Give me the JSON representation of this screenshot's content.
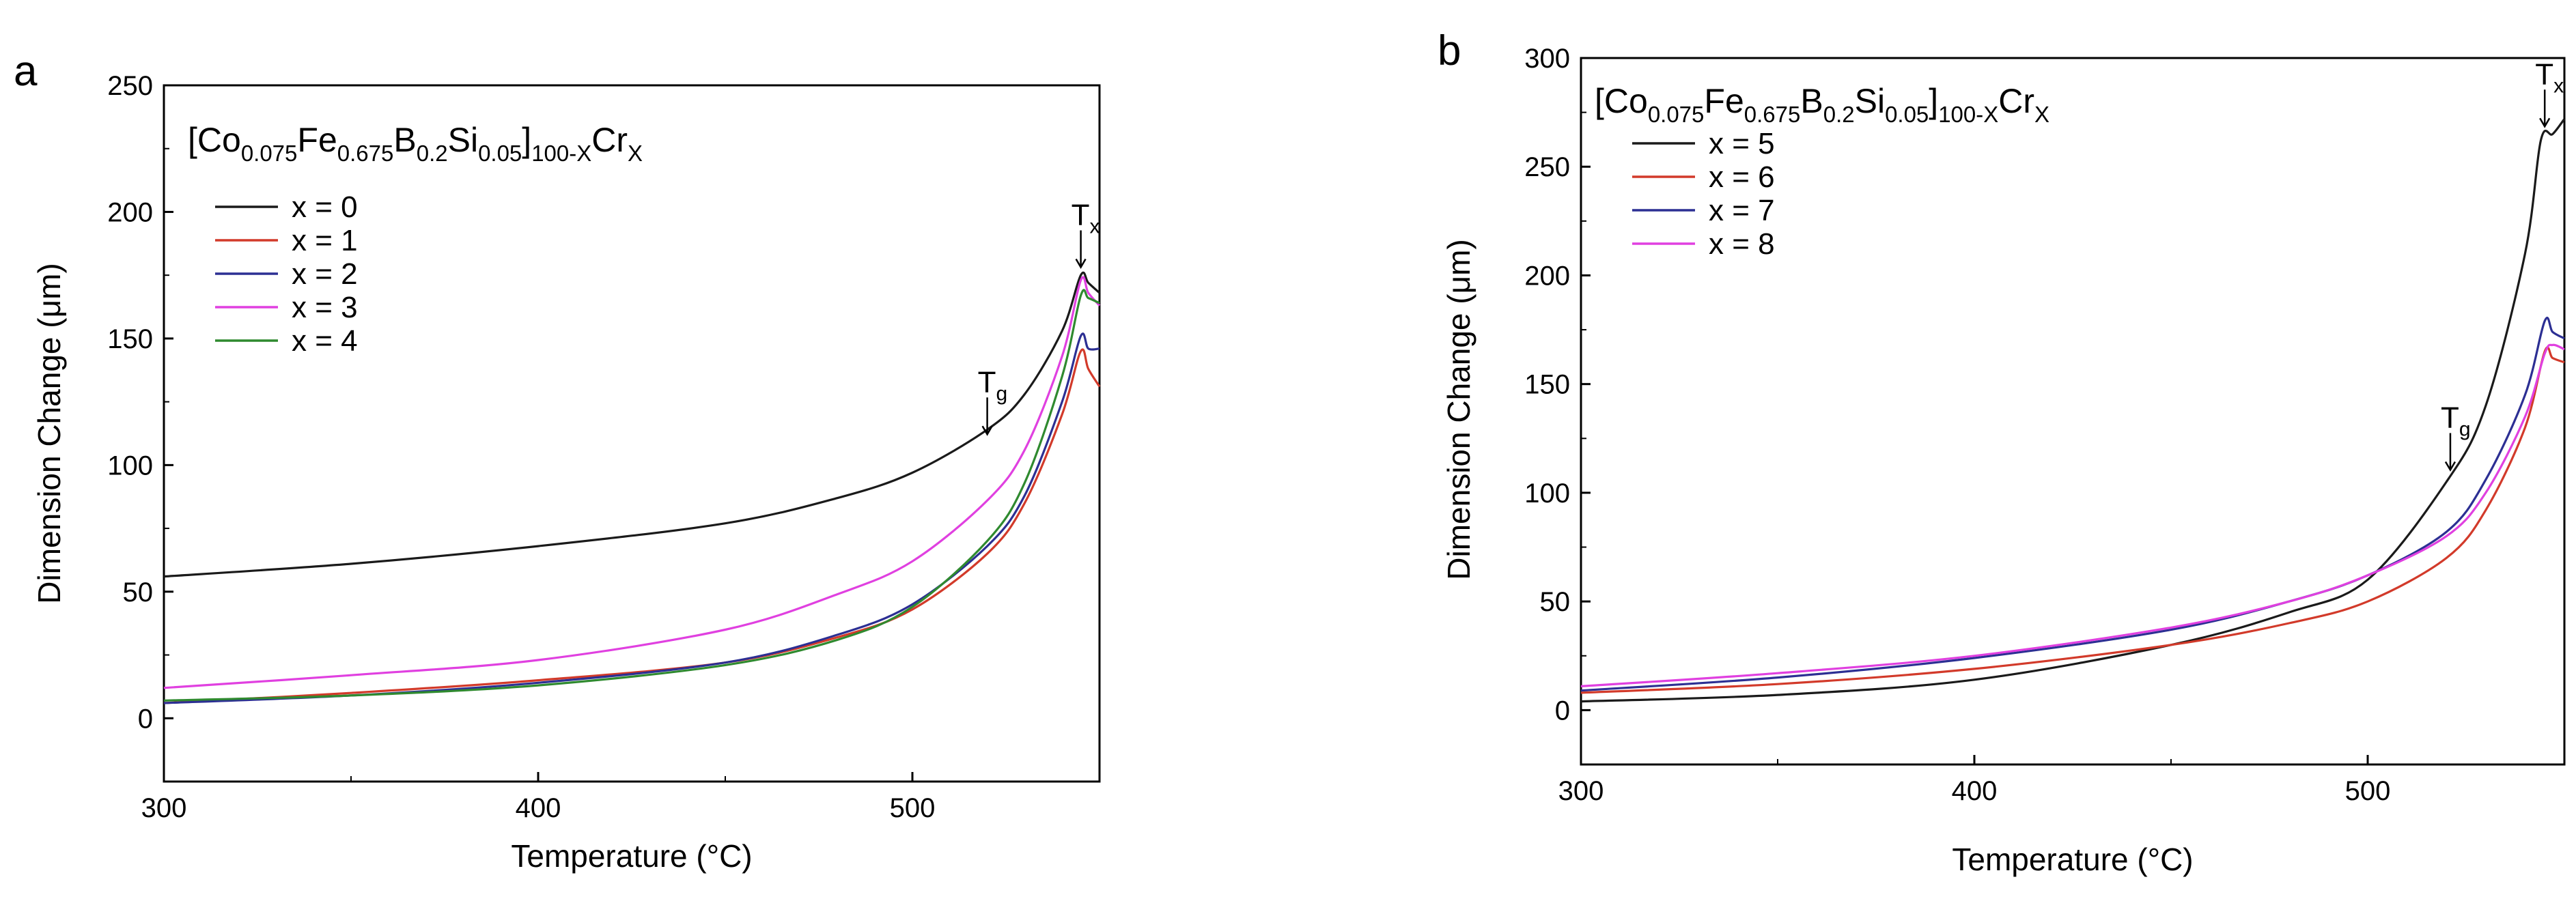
{
  "chart_data": [
    {
      "type": "line",
      "panel_label": "a",
      "xlabel": "Temperature (°C)",
      "ylabel": "Dimension Change (μm)",
      "xlim": [
        300,
        550
      ],
      "ylim": [
        -25,
        250
      ],
      "xticks": [
        "300",
        "400",
        "500"
      ],
      "yticks": [
        "0",
        "50",
        "100",
        "150",
        "200",
        "250"
      ],
      "formula": {
        "open": "[Co",
        "s1": "0.075",
        "fe": "Fe",
        "s2": "0.675",
        "b": "B",
        "s3": "0.2",
        "si": "Si",
        "s4": "0.05",
        "close": "]",
        "s5": "100-X",
        "cr": "Cr",
        "s6": "X"
      },
      "annotations": [
        {
          "main": "T",
          "sub": "g",
          "x": 520,
          "y": 110
        },
        {
          "main": "T",
          "sub": "x",
          "x": 545,
          "y": 176
        }
      ],
      "series": [
        {
          "name": "x = 0",
          "color": "#1a1a1a",
          "x": [
            300,
            350,
            400,
            450,
            480,
            500,
            520,
            530,
            540,
            545,
            547,
            550
          ],
          "y": [
            56,
            61,
            68,
            77,
            87,
            97,
            114,
            128,
            153,
            175,
            172,
            168
          ]
        },
        {
          "name": "x = 1",
          "color": "#d23a2a",
          "x": [
            300,
            350,
            400,
            450,
            480,
            500,
            520,
            530,
            540,
            545,
            547,
            550
          ],
          "y": [
            6,
            10,
            15,
            22,
            32,
            43,
            65,
            85,
            120,
            145,
            138,
            131
          ]
        },
        {
          "name": "x = 2",
          "color": "#2c2f93",
          "x": [
            300,
            350,
            400,
            450,
            480,
            500,
            520,
            530,
            540,
            545,
            547,
            550
          ],
          "y": [
            6,
            9,
            14,
            22,
            33,
            45,
            68,
            88,
            125,
            151,
            146,
            146
          ]
        },
        {
          "name": "x = 3",
          "color": "#e040e0",
          "x": [
            300,
            350,
            400,
            450,
            480,
            500,
            520,
            530,
            540,
            545,
            547,
            550
          ],
          "y": [
            12,
            17,
            23,
            35,
            49,
            62,
            86,
            106,
            143,
            173,
            168,
            163
          ]
        },
        {
          "name": "x = 4",
          "color": "#2f8a2f",
          "x": [
            300,
            350,
            400,
            450,
            480,
            500,
            520,
            530,
            540,
            545,
            547,
            550
          ],
          "y": [
            7,
            9,
            13,
            21,
            31,
            44,
            70,
            93,
            135,
            167,
            166,
            164
          ]
        }
      ]
    },
    {
      "type": "line",
      "panel_label": "b",
      "xlabel": "Temperature (°C)",
      "ylabel": "Dimension Change (μm)",
      "xlim": [
        300,
        550
      ],
      "ylim": [
        -25,
        300
      ],
      "xticks": [
        "300",
        "400",
        "500"
      ],
      "yticks": [
        "0",
        "50",
        "100",
        "150",
        "200",
        "250",
        "300"
      ],
      "formula": {
        "open": "[Co",
        "s1": "0.075",
        "fe": "Fe",
        "s2": "0.675",
        "b": "B",
        "s3": "0.2",
        "si": "Si",
        "s4": "0.05",
        "close": "]",
        "s5": "100-X",
        "cr": "Cr",
        "s6": "X"
      },
      "annotations": [
        {
          "main": "T",
          "sub": "g",
          "x": 521,
          "y": 108
        },
        {
          "main": "T",
          "sub": "x",
          "x": 545,
          "y": 266
        }
      ],
      "series": [
        {
          "name": "x = 5",
          "color": "#1a1a1a",
          "x": [
            300,
            350,
            400,
            450,
            480,
            500,
            520,
            530,
            540,
            544,
            547,
            550
          ],
          "y": [
            4,
            7,
            14,
            30,
            45,
            60,
            105,
            140,
            210,
            262,
            265,
            272
          ]
        },
        {
          "name": "x = 6",
          "color": "#d23a2a",
          "x": [
            300,
            350,
            400,
            450,
            480,
            500,
            520,
            530,
            540,
            545,
            547,
            550
          ],
          "y": [
            8,
            12,
            19,
            30,
            40,
            50,
            70,
            92,
            130,
            165,
            162,
            160
          ]
        },
        {
          "name": "x = 7",
          "color": "#2c2f93",
          "x": [
            300,
            350,
            400,
            450,
            480,
            500,
            520,
            530,
            540,
            545,
            547,
            550
          ],
          "y": [
            9,
            15,
            24,
            37,
            50,
            62,
            82,
            106,
            145,
            179,
            174,
            171
          ]
        },
        {
          "name": "x = 8",
          "color": "#e040e0",
          "x": [
            300,
            350,
            400,
            450,
            480,
            500,
            520,
            530,
            540,
            545,
            547,
            550
          ],
          "y": [
            11,
            17,
            25,
            38,
            50,
            62,
            80,
            100,
            135,
            164,
            168,
            166
          ]
        }
      ]
    }
  ]
}
